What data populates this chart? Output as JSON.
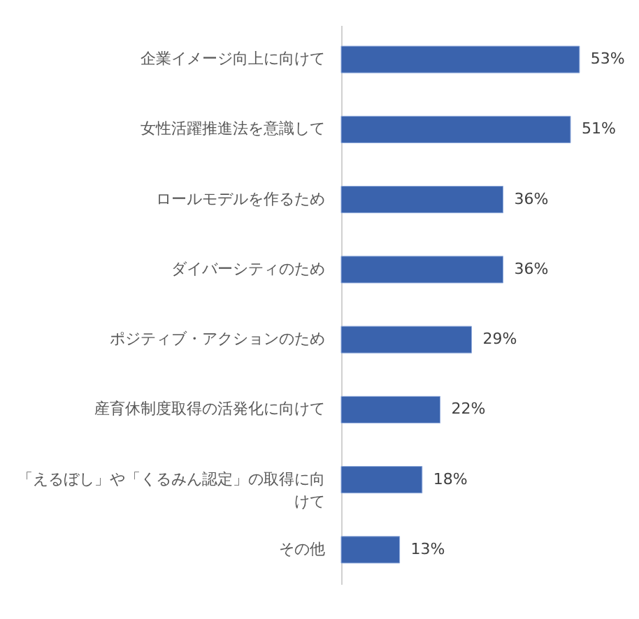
{
  "chart_data": {
    "type": "bar",
    "orientation": "horizontal",
    "categories": [
      "企業イメージ向上に向けて",
      "女性活躍推進法を意識して",
      "ロールモデルを作るため",
      "ダイバーシティのため",
      "ポジティブ・アクションのため",
      "産育休制度取得の活発化に向けて",
      "「えるぼし」や「くるみん認定」の取得に向けて",
      "その他"
    ],
    "values": [
      53,
      51,
      36,
      36,
      29,
      22,
      18,
      13
    ],
    "value_labels": [
      "53%",
      "51%",
      "36%",
      "36%",
      "29%",
      "22%",
      "18%",
      "13%"
    ],
    "color": "#3a63ad"
  }
}
